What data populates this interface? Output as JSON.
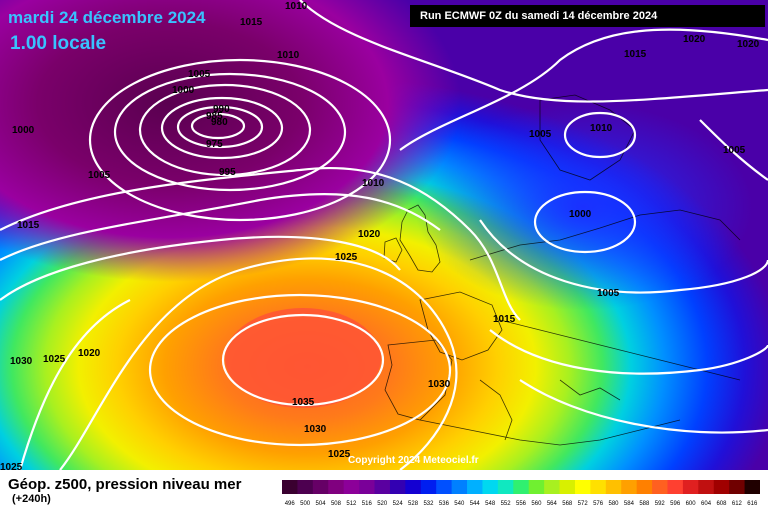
{
  "header": {
    "date": "mardi 24 décembre 2024",
    "time": "1.00 locale"
  },
  "run_info": "Run ECMWF 0Z du samedi 14 décembre 2024",
  "copyright": "Copyright 2024 Meteociel.fr",
  "footer": {
    "caption": "Géop. z500, pression niveau mer",
    "lead_time": "(+240h)"
  },
  "legend": {
    "ticks": [
      "496",
      "500",
      "504",
      "508",
      "512",
      "516",
      "520",
      "524",
      "528",
      "532",
      "536",
      "540",
      "544",
      "548",
      "552",
      "556",
      "560",
      "564",
      "568",
      "572",
      "576",
      "580",
      "584",
      "588",
      "592",
      "596",
      "600",
      "604",
      "608",
      "612",
      "616"
    ],
    "colors": [
      "#3a0030",
      "#4d0050",
      "#660066",
      "#80007f",
      "#8c0099",
      "#7a0099",
      "#5a00a0",
      "#3300b2",
      "#1400d2",
      "#001ef0",
      "#0050ff",
      "#0080ff",
      "#00b0ff",
      "#00d8f0",
      "#10e8c0",
      "#30f070",
      "#70f030",
      "#a8f020",
      "#d8f000",
      "#ffff00",
      "#ffe000",
      "#ffc000",
      "#ffa000",
      "#ff8000",
      "#ff6020",
      "#ff4030",
      "#e02020",
      "#c01010",
      "#a00000",
      "#700000",
      "#200000"
    ]
  },
  "isobars": [
    {
      "label": "1015"
    },
    {
      "label": "1010"
    },
    {
      "label": "1010"
    },
    {
      "label": "1005"
    },
    {
      "label": "1000"
    },
    {
      "label": "990"
    },
    {
      "label": "985"
    },
    {
      "label": "980"
    },
    {
      "label": "975"
    },
    {
      "label": "995"
    },
    {
      "label": "1000"
    },
    {
      "label": "1005"
    },
    {
      "label": "1015"
    },
    {
      "label": "1030"
    },
    {
      "label": "1025"
    },
    {
      "label": "1020"
    },
    {
      "label": "1025"
    },
    {
      "label": "1010"
    },
    {
      "label": "1020"
    },
    {
      "label": "1025"
    },
    {
      "label": "1035"
    },
    {
      "label": "1030"
    },
    {
      "label": "1030"
    },
    {
      "label": "1025"
    },
    {
      "label": "1015"
    },
    {
      "label": "1005"
    },
    {
      "label": "1010"
    },
    {
      "label": "1000"
    },
    {
      "label": "1005"
    },
    {
      "label": "1015"
    },
    {
      "label": "1020"
    },
    {
      "label": "1020"
    },
    {
      "label": "1005"
    },
    {
      "label": "1025"
    }
  ]
}
